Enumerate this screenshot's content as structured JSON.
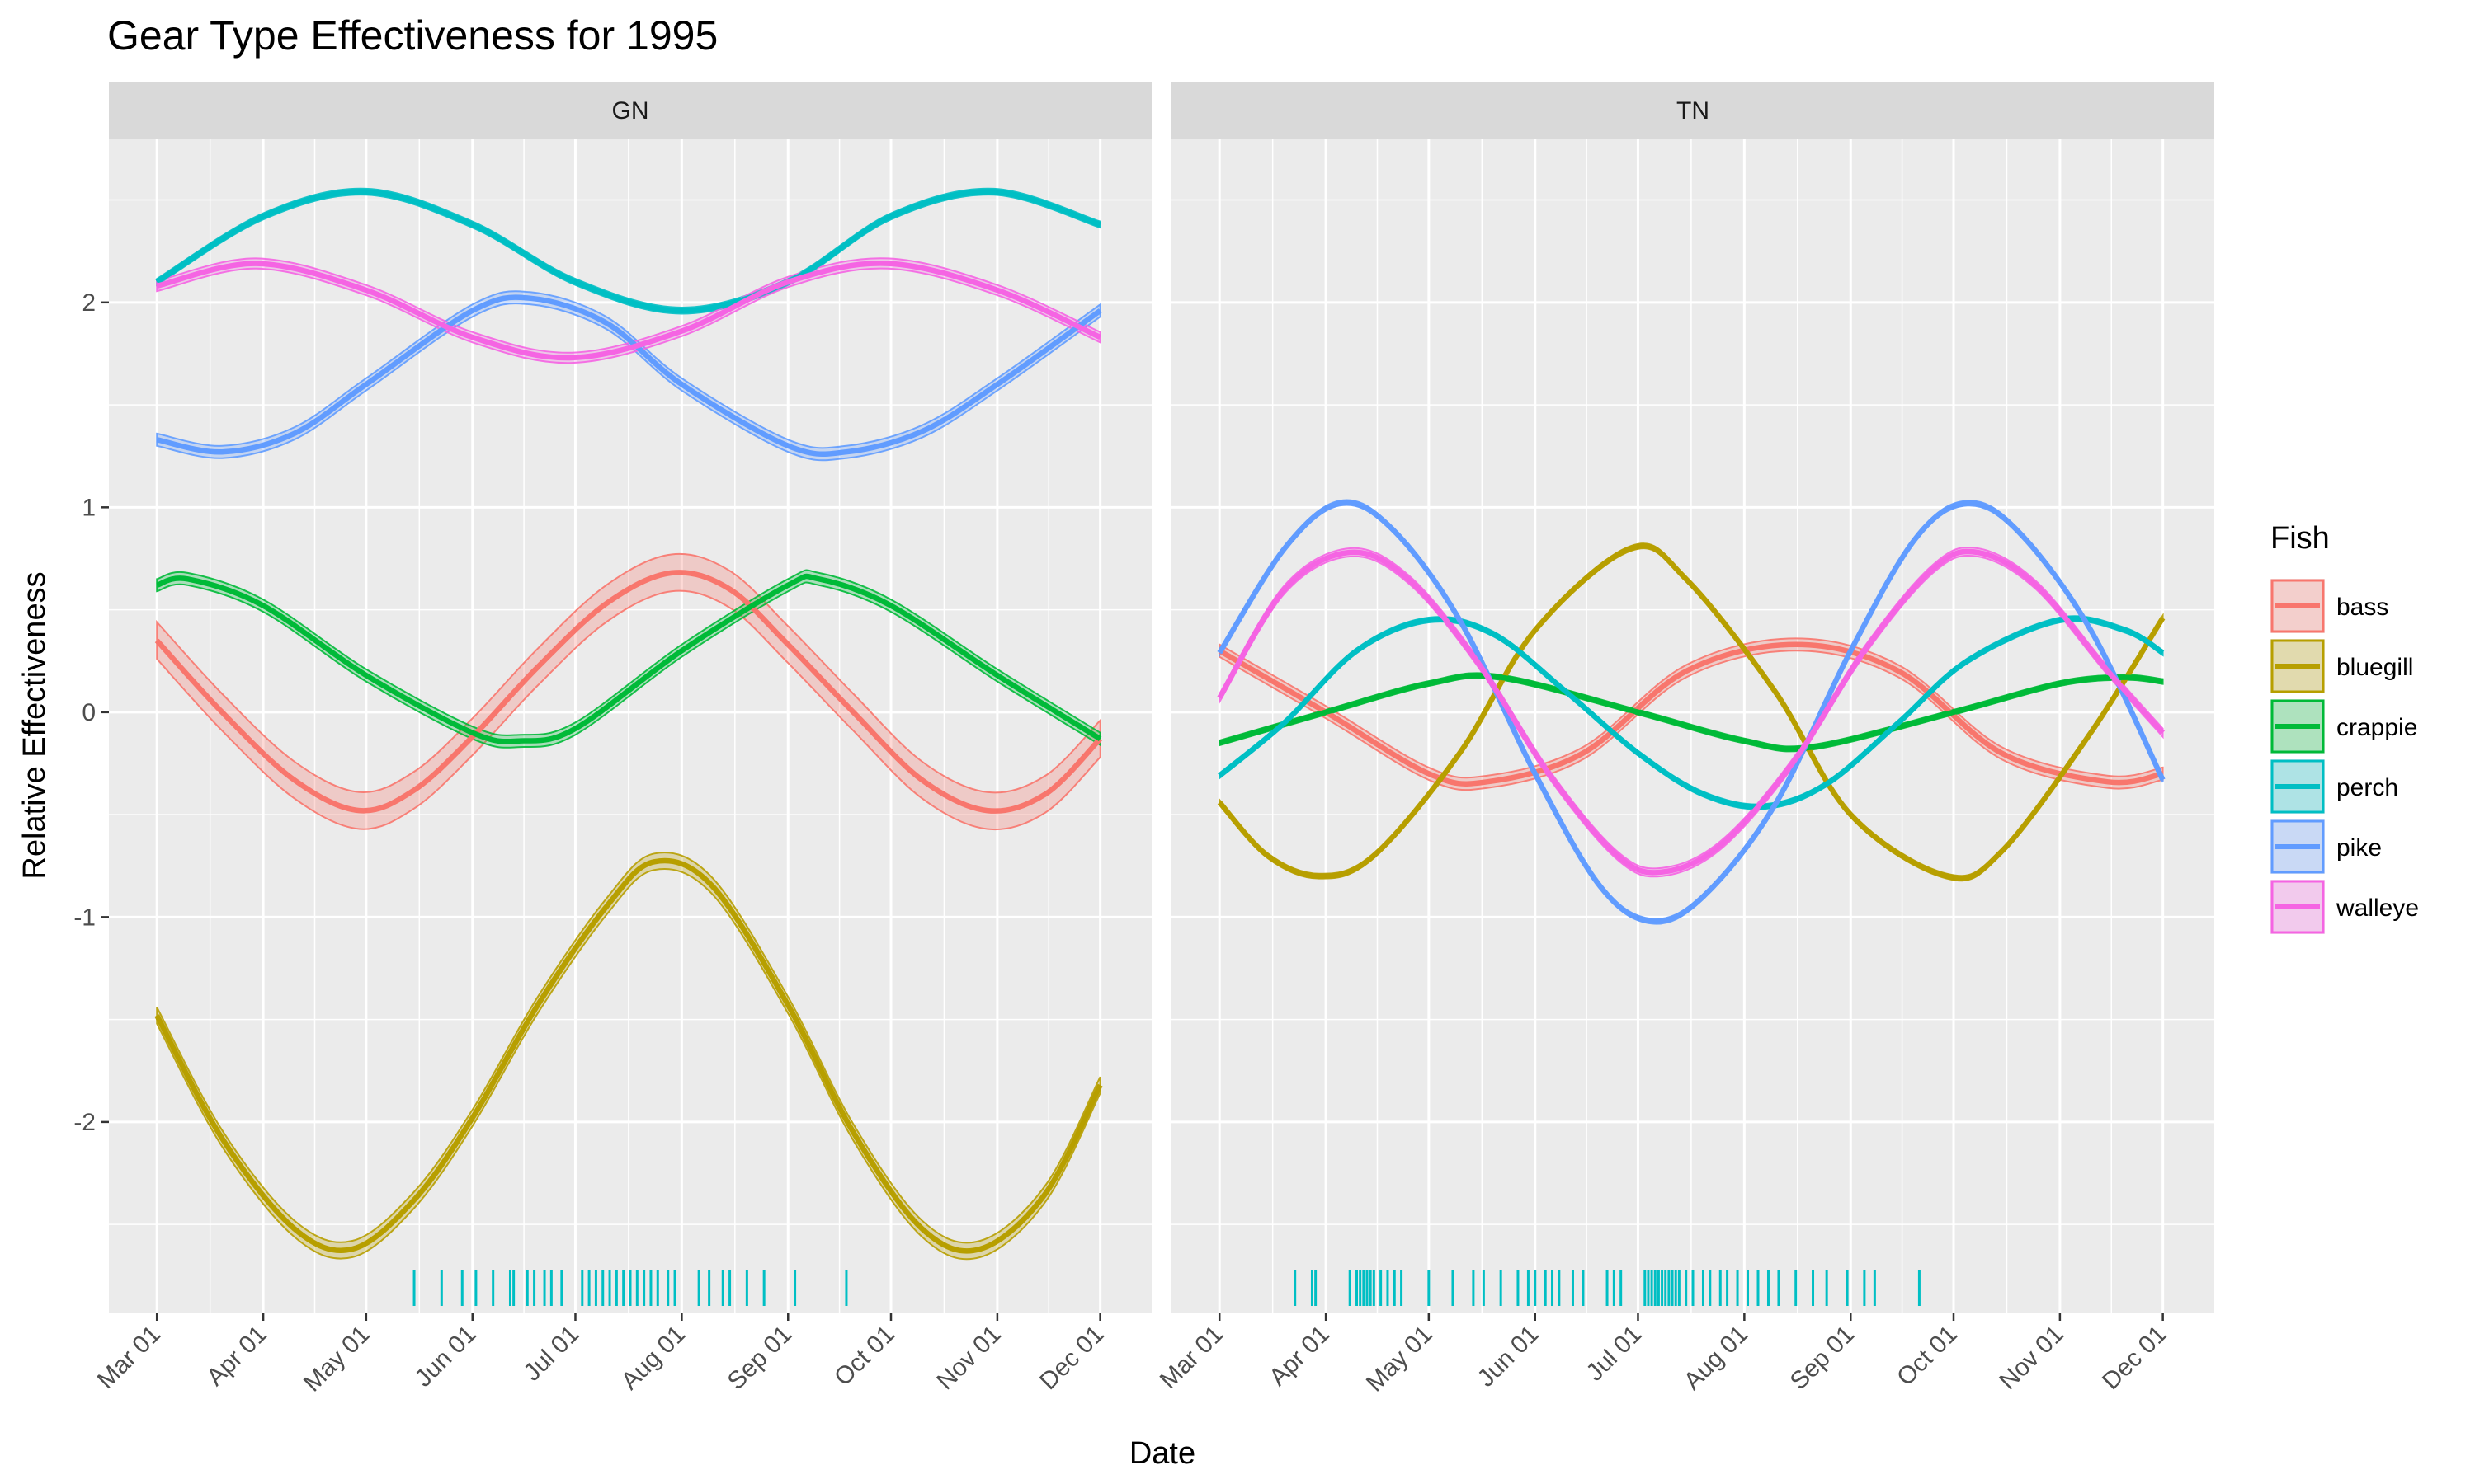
{
  "chart_data": {
    "type": "line",
    "title": "Gear Type Effectiveness for 1995",
    "xlabel": "Date",
    "ylabel": "Relative Effectiveness",
    "xlim": [
      "1995-02-15",
      "1995-12-16"
    ],
    "ylim": [
      -2.93,
      2.8
    ],
    "y_ticks": [
      -2,
      -1,
      0,
      1,
      2
    ],
    "x_ticks": [
      "1995-03-01",
      "1995-04-01",
      "1995-05-01",
      "1995-06-01",
      "1995-07-01",
      "1995-08-01",
      "1995-09-01",
      "1995-10-01",
      "1995-11-01",
      "1995-12-01"
    ],
    "x_tick_labels": [
      "Mar 01",
      "Apr 01",
      "May 01",
      "Jun 01",
      "Jul 01",
      "Aug 01",
      "Sep 01",
      "Oct 01",
      "Nov 01",
      "Dec 01"
    ],
    "grid": true,
    "legend": {
      "title": "Fish",
      "placement": "right"
    },
    "colors": {
      "bass": "#F8766D",
      "bluegill": "#B79F00",
      "crappie": "#00BA38",
      "perch": "#00BFC4",
      "pike": "#619CFF",
      "walleye": "#F564E3"
    },
    "panels": [
      {
        "label": "GN",
        "series": [
          {
            "name": "bass",
            "ribbon_halfwidth": 0.09,
            "points": [
              [
                "1995-03-01",
                0.35
              ],
              [
                "1995-03-20",
                0.0
              ],
              [
                "1995-04-10",
                -0.33
              ],
              [
                "1995-04-29",
                -0.48
              ],
              [
                "1995-05-15",
                -0.38
              ],
              [
                "1995-06-01",
                -0.12
              ],
              [
                "1995-06-20",
                0.22
              ],
              [
                "1995-07-10",
                0.53
              ],
              [
                "1995-07-29",
                0.68
              ],
              [
                "1995-08-15",
                0.6
              ],
              [
                "1995-09-01",
                0.33
              ],
              [
                "1995-09-20",
                0.0
              ],
              [
                "1995-10-10",
                -0.33
              ],
              [
                "1995-10-29",
                -0.48
              ],
              [
                "1995-11-15",
                -0.4
              ],
              [
                "1995-12-01",
                -0.13
              ]
            ]
          },
          {
            "name": "bluegill",
            "ribbon_halfwidth": 0.04,
            "points": [
              [
                "1995-03-01",
                -1.48
              ],
              [
                "1995-03-20",
                -2.08
              ],
              [
                "1995-04-10",
                -2.52
              ],
              [
                "1995-04-27",
                -2.62
              ],
              [
                "1995-05-15",
                -2.38
              ],
              [
                "1995-06-01",
                -1.98
              ],
              [
                "1995-06-20",
                -1.43
              ],
              [
                "1995-07-10",
                -0.95
              ],
              [
                "1995-07-24",
                -0.73
              ],
              [
                "1995-08-10",
                -0.85
              ],
              [
                "1995-09-01",
                -1.43
              ],
              [
                "1995-09-20",
                -2.05
              ],
              [
                "1995-10-10",
                -2.52
              ],
              [
                "1995-10-27",
                -2.62
              ],
              [
                "1995-11-15",
                -2.35
              ],
              [
                "1995-12-01",
                -1.82
              ]
            ]
          },
          {
            "name": "crappie",
            "ribbon_halfwidth": 0.03,
            "points": [
              [
                "1995-03-01",
                0.62
              ],
              [
                "1995-03-10",
                0.65
              ],
              [
                "1995-04-01",
                0.52
              ],
              [
                "1995-05-01",
                0.18
              ],
              [
                "1995-06-01",
                -0.1
              ],
              [
                "1995-06-15",
                -0.14
              ],
              [
                "1995-07-01",
                -0.08
              ],
              [
                "1995-08-01",
                0.3
              ],
              [
                "1995-09-01",
                0.62
              ],
              [
                "1995-09-10",
                0.65
              ],
              [
                "1995-10-01",
                0.52
              ],
              [
                "1995-11-01",
                0.18
              ],
              [
                "1995-12-01",
                -0.13
              ]
            ]
          },
          {
            "name": "perch",
            "ribbon_halfwidth": 0.015,
            "points": [
              [
                "1995-03-01",
                2.1
              ],
              [
                "1995-04-01",
                2.42
              ],
              [
                "1995-05-01",
                2.54
              ],
              [
                "1995-06-01",
                2.38
              ],
              [
                "1995-07-01",
                2.1
              ],
              [
                "1995-08-01",
                1.96
              ],
              [
                "1995-09-01",
                2.1
              ],
              [
                "1995-10-01",
                2.42
              ],
              [
                "1995-10-31",
                2.54
              ],
              [
                "1995-12-01",
                2.38
              ]
            ]
          },
          {
            "name": "pike",
            "ribbon_halfwidth": 0.03,
            "points": [
              [
                "1995-03-01",
                1.33
              ],
              [
                "1995-03-20",
                1.27
              ],
              [
                "1995-04-10",
                1.36
              ],
              [
                "1995-05-01",
                1.6
              ],
              [
                "1995-06-01",
                1.96
              ],
              [
                "1995-06-18",
                2.02
              ],
              [
                "1995-07-10",
                1.9
              ],
              [
                "1995-08-01",
                1.6
              ],
              [
                "1995-09-01",
                1.3
              ],
              [
                "1995-09-18",
                1.27
              ],
              [
                "1995-10-10",
                1.37
              ],
              [
                "1995-11-01",
                1.6
              ],
              [
                "1995-12-01",
                1.96
              ]
            ]
          },
          {
            "name": "walleye",
            "ribbon_halfwidth": 0.025,
            "points": [
              [
                "1995-03-01",
                2.08
              ],
              [
                "1995-03-30",
                2.19
              ],
              [
                "1995-05-01",
                2.06
              ],
              [
                "1995-06-01",
                1.83
              ],
              [
                "1995-06-30",
                1.73
              ],
              [
                "1995-08-01",
                1.86
              ],
              [
                "1995-09-01",
                2.1
              ],
              [
                "1995-09-30",
                2.19
              ],
              [
                "1995-11-01",
                2.06
              ],
              [
                "1995-12-01",
                1.83
              ]
            ]
          }
        ],
        "rug_dates": [
          "1995-05-15",
          "1995-05-23",
          "1995-05-29",
          "1995-06-02",
          "1995-06-07",
          "1995-06-12",
          "1995-06-13",
          "1995-06-17",
          "1995-06-19",
          "1995-06-22",
          "1995-06-24",
          "1995-06-27",
          "1995-07-03",
          "1995-07-05",
          "1995-07-07",
          "1995-07-09",
          "1995-07-11",
          "1995-07-13",
          "1995-07-15",
          "1995-07-17",
          "1995-07-19",
          "1995-07-21",
          "1995-07-23",
          "1995-07-25",
          "1995-07-28",
          "1995-07-30",
          "1995-08-06",
          "1995-08-09",
          "1995-08-13",
          "1995-08-15",
          "1995-08-20",
          "1995-08-25",
          "1995-09-03",
          "1995-09-18"
        ]
      },
      {
        "label": "TN",
        "series": [
          {
            "name": "bass",
            "ribbon_halfwidth": 0.03,
            "points": [
              [
                "1995-03-01",
                0.3
              ],
              [
                "1995-04-01",
                0.0
              ],
              [
                "1995-05-01",
                -0.3
              ],
              [
                "1995-05-18",
                -0.34
              ],
              [
                "1995-06-15",
                -0.2
              ],
              [
                "1995-07-15",
                0.2
              ],
              [
                "1995-08-16",
                0.33
              ],
              [
                "1995-09-15",
                0.2
              ],
              [
                "1995-10-15",
                -0.2
              ],
              [
                "1995-11-15",
                -0.34
              ],
              [
                "1995-12-01",
                -0.3
              ]
            ]
          },
          {
            "name": "bluegill",
            "ribbon_halfwidth": 0.012,
            "points": [
              [
                "1995-03-01",
                -0.44
              ],
              [
                "1995-03-15",
                -0.7
              ],
              [
                "1995-03-30",
                -0.8
              ],
              [
                "1995-04-15",
                -0.7
              ],
              [
                "1995-05-10",
                -0.2
              ],
              [
                "1995-06-01",
                0.4
              ],
              [
                "1995-06-29",
                0.8
              ],
              [
                "1995-07-15",
                0.65
              ],
              [
                "1995-08-10",
                0.1
              ],
              [
                "1995-09-01",
                -0.5
              ],
              [
                "1995-09-29",
                -0.8
              ],
              [
                "1995-10-15",
                -0.68
              ],
              [
                "1995-11-10",
                -0.1
              ],
              [
                "1995-12-01",
                0.46
              ]
            ]
          },
          {
            "name": "crappie",
            "ribbon_halfwidth": 0.012,
            "points": [
              [
                "1995-03-01",
                -0.15
              ],
              [
                "1995-04-01",
                0.0
              ],
              [
                "1995-05-01",
                0.14
              ],
              [
                "1995-05-22",
                0.17
              ],
              [
                "1995-07-01",
                0.0
              ],
              [
                "1995-08-01",
                -0.14
              ],
              [
                "1995-08-21",
                -0.17
              ],
              [
                "1995-10-01",
                0.0
              ],
              [
                "1995-11-01",
                0.14
              ],
              [
                "1995-11-20",
                0.17
              ],
              [
                "1995-12-01",
                0.15
              ]
            ]
          },
          {
            "name": "perch",
            "ribbon_halfwidth": 0.012,
            "points": [
              [
                "1995-03-01",
                -0.31
              ],
              [
                "1995-03-20",
                -0.05
              ],
              [
                "1995-04-10",
                0.3
              ],
              [
                "1995-05-01",
                0.45
              ],
              [
                "1995-05-20",
                0.38
              ],
              [
                "1995-06-10",
                0.1
              ],
              [
                "1995-07-01",
                -0.2
              ],
              [
                "1995-07-20",
                -0.4
              ],
              [
                "1995-08-07",
                -0.46
              ],
              [
                "1995-08-25",
                -0.35
              ],
              [
                "1995-09-15",
                -0.05
              ],
              [
                "1995-10-05",
                0.25
              ],
              [
                "1995-11-01",
                0.45
              ],
              [
                "1995-11-20",
                0.4
              ],
              [
                "1995-12-01",
                0.29
              ]
            ]
          },
          {
            "name": "pike",
            "ribbon_halfwidth": 0.012,
            "points": [
              [
                "1995-03-01",
                0.29
              ],
              [
                "1995-03-20",
                0.8
              ],
              [
                "1995-04-05",
                1.02
              ],
              [
                "1995-04-20",
                0.9
              ],
              [
                "1995-05-10",
                0.45
              ],
              [
                "1995-06-01",
                -0.3
              ],
              [
                "1995-06-20",
                -0.85
              ],
              [
                "1995-07-05",
                -1.02
              ],
              [
                "1995-07-20",
                -0.9
              ],
              [
                "1995-08-10",
                -0.45
              ],
              [
                "1995-09-01",
                0.3
              ],
              [
                "1995-09-20",
                0.85
              ],
              [
                "1995-10-05",
                1.02
              ],
              [
                "1995-10-20",
                0.88
              ],
              [
                "1995-11-10",
                0.4
              ],
              [
                "1995-12-01",
                -0.33
              ]
            ]
          },
          {
            "name": "walleye",
            "ribbon_halfwidth": 0.02,
            "points": [
              [
                "1995-03-01",
                0.07
              ],
              [
                "1995-03-20",
                0.6
              ],
              [
                "1995-04-08",
                0.78
              ],
              [
                "1995-04-25",
                0.65
              ],
              [
                "1995-05-15",
                0.25
              ],
              [
                "1995-06-05",
                -0.3
              ],
              [
                "1995-06-25",
                -0.7
              ],
              [
                "1995-07-08",
                -0.78
              ],
              [
                "1995-07-25",
                -0.65
              ],
              [
                "1995-08-15",
                -0.25
              ],
              [
                "1995-09-05",
                0.3
              ],
              [
                "1995-09-25",
                0.7
              ],
              [
                "1995-10-08",
                0.78
              ],
              [
                "1995-10-25",
                0.62
              ],
              [
                "1995-11-15",
                0.2
              ],
              [
                "1995-12-01",
                -0.1
              ]
            ]
          }
        ],
        "rug_dates": [
          "1995-03-23",
          "1995-03-28",
          "1995-03-29",
          "1995-04-08",
          "1995-04-10",
          "1995-04-11",
          "1995-04-12",
          "1995-04-13",
          "1995-04-14",
          "1995-04-15",
          "1995-04-17",
          "1995-04-19",
          "1995-04-21",
          "1995-04-23",
          "1995-05-01",
          "1995-05-08",
          "1995-05-14",
          "1995-05-17",
          "1995-05-22",
          "1995-05-27",
          "1995-05-30",
          "1995-06-01",
          "1995-06-04",
          "1995-06-06",
          "1995-06-08",
          "1995-06-12",
          "1995-06-15",
          "1995-06-22",
          "1995-06-24",
          "1995-06-26",
          "1995-07-03",
          "1995-07-04",
          "1995-07-05",
          "1995-07-06",
          "1995-07-07",
          "1995-07-08",
          "1995-07-09",
          "1995-07-10",
          "1995-07-11",
          "1995-07-12",
          "1995-07-13",
          "1995-07-15",
          "1995-07-17",
          "1995-07-20",
          "1995-07-22",
          "1995-07-25",
          "1995-07-27",
          "1995-07-30",
          "1995-08-02",
          "1995-08-05",
          "1995-08-08",
          "1995-08-11",
          "1995-08-16",
          "1995-08-21",
          "1995-08-25",
          "1995-08-31",
          "1995-09-05",
          "1995-09-08",
          "1995-09-21"
        ]
      }
    ]
  }
}
